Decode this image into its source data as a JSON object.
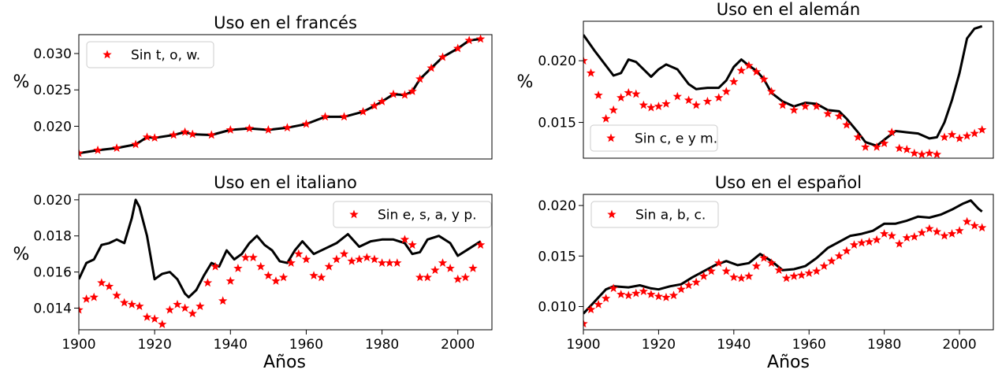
{
  "figure": {
    "xlabel": "Años",
    "ylabel": "%",
    "colors": {
      "black_line": "#000000",
      "star_marker": "#ff0000"
    }
  },
  "chart_data": [
    {
      "type": "line",
      "title": "Uso en el francés",
      "ylim": [
        0.0155,
        0.0326
      ],
      "xlim": [
        1900,
        2009
      ],
      "yticks": [
        "0.020",
        "0.025",
        "0.030"
      ],
      "show_xticks": false,
      "legend": {
        "label": "Sin t, o, w.",
        "placement": "top-left"
      },
      "series": [
        {
          "style": "line",
          "x": [
            1900,
            1905,
            1910,
            1915,
            1918,
            1920,
            1925,
            1928,
            1930,
            1935,
            1940,
            1945,
            1950,
            1955,
            1960,
            1965,
            1970,
            1975,
            1978,
            1980,
            1983,
            1986,
            1988,
            1990,
            1993,
            1996,
            2000,
            2003,
            2006
          ],
          "values": [
            0.0163,
            0.0167,
            0.017,
            0.0175,
            0.0185,
            0.0184,
            0.0188,
            0.0192,
            0.0189,
            0.0188,
            0.0195,
            0.0197,
            0.0195,
            0.0198,
            0.0203,
            0.0213,
            0.0213,
            0.022,
            0.0228,
            0.0234,
            0.0244,
            0.0243,
            0.0248,
            0.0265,
            0.028,
            0.0295,
            0.0307,
            0.0318,
            0.032
          ]
        },
        {
          "style": "stars",
          "x": [
            1900,
            1905,
            1910,
            1915,
            1918,
            1920,
            1925,
            1928,
            1930,
            1935,
            1940,
            1945,
            1950,
            1955,
            1960,
            1965,
            1970,
            1975,
            1978,
            1980,
            1983,
            1986,
            1988,
            1990,
            1993,
            1996,
            2000,
            2003,
            2006
          ],
          "values": [
            0.0163,
            0.0167,
            0.017,
            0.0175,
            0.0185,
            0.0184,
            0.0188,
            0.0192,
            0.0189,
            0.0188,
            0.0195,
            0.0197,
            0.0195,
            0.0198,
            0.0203,
            0.0213,
            0.0213,
            0.022,
            0.0228,
            0.0234,
            0.0244,
            0.0243,
            0.0248,
            0.0265,
            0.028,
            0.0295,
            0.0307,
            0.0318,
            0.032
          ]
        }
      ]
    },
    {
      "type": "line",
      "title": "Uso en el alemán",
      "ylim": [
        0.0121,
        0.0232
      ],
      "xlim": [
        1900,
        2009
      ],
      "yticks": [
        "0.015",
        "0.020"
      ],
      "show_xticks": false,
      "legend": {
        "label": "Sin c, e y m.",
        "placement": "bottom-left"
      },
      "series": [
        {
          "style": "line",
          "x": [
            1900,
            1903,
            1906,
            1908,
            1910,
            1912,
            1914,
            1916,
            1918,
            1920,
            1922,
            1925,
            1928,
            1930,
            1933,
            1936,
            1938,
            1940,
            1942,
            1944,
            1946,
            1948,
            1950,
            1953,
            1956,
            1959,
            1962,
            1965,
            1968,
            1970,
            1973,
            1975,
            1978,
            1980,
            1983,
            1986,
            1989,
            1992,
            1994,
            1996,
            1998,
            2000,
            2002,
            2004,
            2006
          ],
          "values": [
            0.0221,
            0.0208,
            0.0196,
            0.0188,
            0.019,
            0.0201,
            0.0199,
            0.0193,
            0.0187,
            0.0193,
            0.0197,
            0.0193,
            0.0181,
            0.0177,
            0.0178,
            0.0178,
            0.0184,
            0.0195,
            0.0201,
            0.0196,
            0.0192,
            0.0185,
            0.0174,
            0.0167,
            0.0163,
            0.0166,
            0.0165,
            0.016,
            0.0159,
            0.0153,
            0.0142,
            0.0134,
            0.0131,
            0.0136,
            0.0143,
            0.0142,
            0.0141,
            0.0137,
            0.0138,
            0.015,
            0.0168,
            0.019,
            0.0218,
            0.0226,
            0.0228
          ]
        },
        {
          "style": "stars",
          "x": [
            1900,
            1902,
            1904,
            1906,
            1908,
            1910,
            1912,
            1914,
            1916,
            1918,
            1920,
            1922,
            1925,
            1928,
            1930,
            1933,
            1936,
            1938,
            1940,
            1942,
            1944,
            1946,
            1948,
            1950,
            1953,
            1956,
            1959,
            1962,
            1965,
            1968,
            1970,
            1973,
            1975,
            1978,
            1980,
            1982,
            1984,
            1986,
            1988,
            1990,
            1992,
            1994,
            1996,
            1998,
            2000,
            2002,
            2004,
            2006
          ],
          "values": [
            0.02,
            0.019,
            0.0172,
            0.0153,
            0.016,
            0.017,
            0.0174,
            0.0173,
            0.0164,
            0.0162,
            0.0163,
            0.0165,
            0.0171,
            0.0168,
            0.0164,
            0.0167,
            0.017,
            0.0175,
            0.0183,
            0.0192,
            0.0196,
            0.0191,
            0.0185,
            0.0175,
            0.0164,
            0.016,
            0.0163,
            0.0163,
            0.0157,
            0.0155,
            0.0148,
            0.0138,
            0.013,
            0.013,
            0.0133,
            0.0142,
            0.0129,
            0.0128,
            0.0125,
            0.0124,
            0.0125,
            0.0124,
            0.0138,
            0.014,
            0.0137,
            0.0139,
            0.0141,
            0.0144
          ]
        }
      ]
    },
    {
      "type": "line",
      "title": "Uso en el italiano",
      "ylim": [
        0.0128,
        0.0203
      ],
      "xlim": [
        1900,
        2009
      ],
      "yticks": [
        "0.014",
        "0.016",
        "0.018",
        "0.020"
      ],
      "xticks": [
        "1900",
        "1920",
        "1940",
        "1960",
        "1980",
        "2000"
      ],
      "show_xticks": true,
      "legend": {
        "label": "Sin e, s, a, y p.",
        "placement": "top-right"
      },
      "series": [
        {
          "style": "line",
          "x": [
            1900,
            1902,
            1904,
            1906,
            1908,
            1910,
            1912,
            1914,
            1915,
            1916,
            1918,
            1920,
            1922,
            1924,
            1926,
            1928,
            1929,
            1931,
            1933,
            1935,
            1937,
            1939,
            1941,
            1943,
            1945,
            1947,
            1949,
            1951,
            1953,
            1955,
            1957,
            1959,
            1962,
            1965,
            1968,
            1971,
            1974,
            1977,
            1980,
            1983,
            1986,
            1988,
            1990,
            1992,
            1995,
            1998,
            2000,
            2003,
            2006
          ],
          "values": [
            0.0156,
            0.0165,
            0.0167,
            0.0175,
            0.0176,
            0.0178,
            0.0176,
            0.019,
            0.02,
            0.0196,
            0.018,
            0.0156,
            0.0159,
            0.016,
            0.0156,
            0.0148,
            0.0146,
            0.015,
            0.0158,
            0.0165,
            0.0163,
            0.0172,
            0.0167,
            0.017,
            0.0176,
            0.018,
            0.0175,
            0.0172,
            0.0166,
            0.0165,
            0.0172,
            0.0177,
            0.017,
            0.0173,
            0.0176,
            0.0181,
            0.0174,
            0.0177,
            0.0178,
            0.0178,
            0.0176,
            0.017,
            0.0171,
            0.0178,
            0.018,
            0.0176,
            0.0169,
            0.0173,
            0.0177
          ]
        },
        {
          "style": "stars",
          "x": [
            1900,
            1902,
            1904,
            1906,
            1908,
            1910,
            1912,
            1914,
            1916,
            1918,
            1920,
            1922,
            1924,
            1926,
            1928,
            1930,
            1932,
            1934,
            1936,
            1938,
            1940,
            1942,
            1944,
            1946,
            1948,
            1950,
            1952,
            1954,
            1956,
            1958,
            1960,
            1962,
            1964,
            1966,
            1968,
            1970,
            1972,
            1974,
            1976,
            1978,
            1980,
            1982,
            1984,
            1986,
            1988,
            1990,
            1992,
            1994,
            1996,
            1998,
            2000,
            2002,
            2004,
            2006
          ],
          "values": [
            0.0139,
            0.0145,
            0.0146,
            0.0154,
            0.0152,
            0.0147,
            0.0143,
            0.0142,
            0.0141,
            0.0135,
            0.0134,
            0.0131,
            0.0139,
            0.0142,
            0.014,
            0.0137,
            0.0141,
            0.0154,
            0.0163,
            0.0144,
            0.0155,
            0.0162,
            0.0168,
            0.0168,
            0.0163,
            0.0158,
            0.0155,
            0.0157,
            0.0165,
            0.017,
            0.0167,
            0.0158,
            0.0157,
            0.0163,
            0.0167,
            0.017,
            0.0166,
            0.0167,
            0.0168,
            0.0167,
            0.0165,
            0.0165,
            0.0165,
            0.0178,
            0.0175,
            0.0157,
            0.0157,
            0.0161,
            0.0165,
            0.0162,
            0.0156,
            0.0157,
            0.0162,
            0.0175
          ]
        }
      ]
    },
    {
      "type": "line",
      "title": "Uso en el español",
      "ylim": [
        0.0077,
        0.0211
      ],
      "xlim": [
        1900,
        2009
      ],
      "yticks": [
        "0.010",
        "0.015",
        "0.020"
      ],
      "xticks": [
        "1900",
        "1920",
        "1940",
        "1960",
        "1980",
        "2000"
      ],
      "show_xticks": true,
      "legend": {
        "label": "Sin a, b, c.",
        "placement": "top-left"
      },
      "series": [
        {
          "style": "line",
          "x": [
            1900,
            1903,
            1906,
            1908,
            1912,
            1915,
            1918,
            1920,
            1923,
            1926,
            1929,
            1932,
            1935,
            1938,
            1941,
            1944,
            1947,
            1950,
            1953,
            1956,
            1959,
            1962,
            1965,
            1968,
            1971,
            1974,
            1977,
            1980,
            1983,
            1986,
            1989,
            1992,
            1995,
            1998,
            2001,
            2003,
            2005,
            2006
          ],
          "values": [
            0.0093,
            0.0105,
            0.0117,
            0.012,
            0.0119,
            0.0121,
            0.0118,
            0.0117,
            0.012,
            0.0122,
            0.0129,
            0.0135,
            0.0141,
            0.0145,
            0.0141,
            0.0143,
            0.0152,
            0.0145,
            0.0136,
            0.0137,
            0.014,
            0.0148,
            0.0158,
            0.0164,
            0.017,
            0.0172,
            0.0175,
            0.0182,
            0.0182,
            0.0185,
            0.0189,
            0.0188,
            0.0191,
            0.0196,
            0.0202,
            0.0205,
            0.0197,
            0.0194
          ]
        },
        {
          "style": "stars",
          "x": [
            1900,
            1902,
            1904,
            1906,
            1908,
            1910,
            1912,
            1914,
            1916,
            1918,
            1920,
            1922,
            1924,
            1926,
            1928,
            1930,
            1932,
            1934,
            1936,
            1938,
            1940,
            1942,
            1944,
            1946,
            1948,
            1950,
            1952,
            1954,
            1956,
            1958,
            1960,
            1962,
            1964,
            1966,
            1968,
            1970,
            1972,
            1974,
            1976,
            1978,
            1980,
            1982,
            1984,
            1986,
            1988,
            1990,
            1992,
            1994,
            1996,
            1998,
            2000,
            2002,
            2004,
            2006
          ],
          "values": [
            0.0083,
            0.0097,
            0.0102,
            0.0108,
            0.0118,
            0.0112,
            0.0111,
            0.0113,
            0.0115,
            0.0112,
            0.011,
            0.0109,
            0.0111,
            0.0117,
            0.0121,
            0.0124,
            0.013,
            0.0135,
            0.0143,
            0.0135,
            0.0129,
            0.0128,
            0.013,
            0.014,
            0.0148,
            0.0143,
            0.0136,
            0.0128,
            0.013,
            0.0131,
            0.0133,
            0.0135,
            0.014,
            0.0145,
            0.015,
            0.0155,
            0.0161,
            0.0163,
            0.0164,
            0.0166,
            0.0172,
            0.017,
            0.0162,
            0.0168,
            0.0169,
            0.0173,
            0.0177,
            0.0174,
            0.017,
            0.0172,
            0.0175,
            0.0184,
            0.018,
            0.0178
          ]
        }
      ]
    }
  ]
}
